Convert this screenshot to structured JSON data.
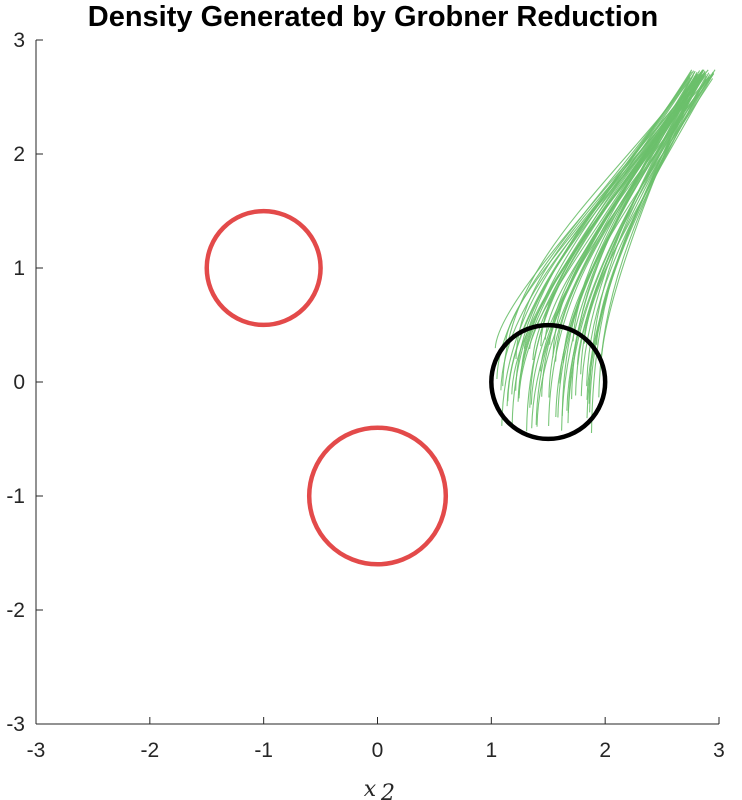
{
  "chart_data": {
    "type": "line",
    "title": "Density Generated by Grobner Reduction",
    "xlabel": "x_2",
    "ylabel": "",
    "xlim": [
      -3,
      3
    ],
    "ylim": [
      -3,
      3
    ],
    "xticks": [
      -3,
      -2,
      -1,
      0,
      1,
      2,
      3
    ],
    "yticks": [
      -3,
      -2,
      -1,
      0,
      1,
      2,
      3
    ],
    "grid": false,
    "legend": "none",
    "colors": {
      "obstacle": "#e34a4a",
      "initial_set": "#000000",
      "trajectories": "#6cc06c",
      "axis": "#262626"
    },
    "obstacles": [
      {
        "cx": -1,
        "cy": 1,
        "r": 0.5
      },
      {
        "cx": 0,
        "cy": -1,
        "r": 0.6
      }
    ],
    "initial_set": {
      "cx": 1.5,
      "cy": 0,
      "r": 0.5
    },
    "trajectory_bundle": {
      "count": 60,
      "start_x_range": [
        1.05,
        1.95
      ],
      "start_y_range": [
        -0.45,
        0.4
      ],
      "end_x_range": [
        2.72,
        3.0
      ],
      "end_y": 2.7
    }
  }
}
